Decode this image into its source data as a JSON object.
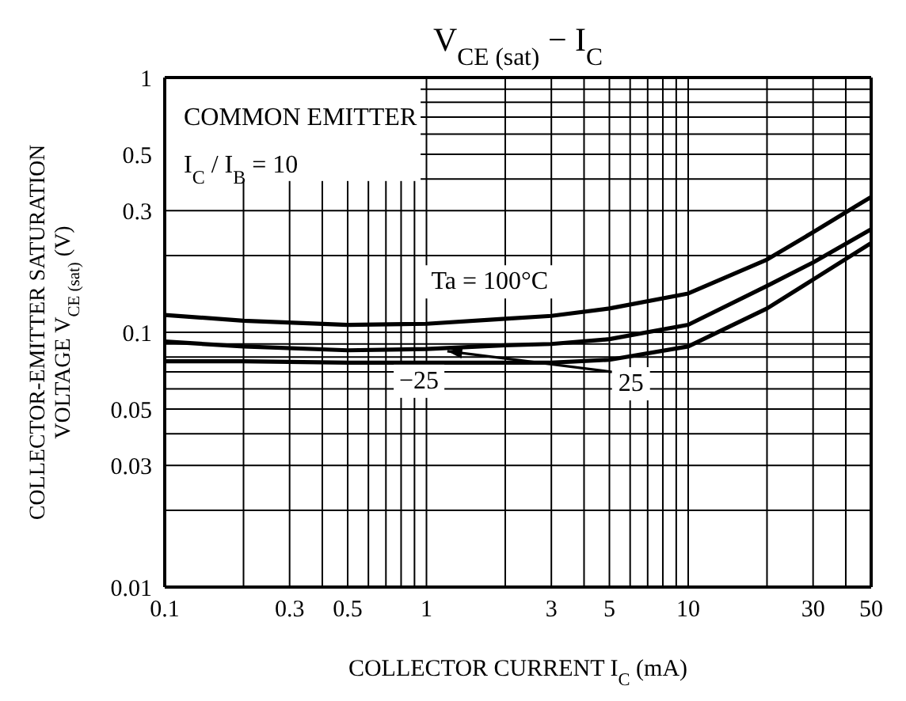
{
  "chart_data": {
    "type": "line",
    "title": "V$_{CE (sat)}$ − I$_{C}$",
    "xlabel": "COLLECTOR CURRENT  I$_{C}$  (mA)",
    "ylabel": "COLLECTOR-EMITTER SATURATION\nVOLTAGE  V$_{CE (sat)}$  (V)",
    "annotations": [
      "COMMON EMITTER",
      "I$_{C}$ / I$_{B}$ = 10"
    ],
    "log": "xy",
    "grid": true,
    "xlim": [
      0.1,
      50
    ],
    "ylim": [
      0.01,
      1
    ],
    "xticks": [
      0.1,
      {
        "value": 0.2,
        "label": null
      },
      0.3,
      {
        "value": 0.4,
        "label": null
      },
      0.5,
      {
        "value": 0.6,
        "label": null
      },
      {
        "value": 0.7,
        "label": null
      },
      {
        "value": 0.8,
        "label": null
      },
      {
        "value": 0.9,
        "label": null
      },
      1,
      {
        "value": 2,
        "label": null
      },
      3,
      {
        "value": 4,
        "label": null
      },
      5,
      {
        "value": 6,
        "label": null
      },
      {
        "value": 7,
        "label": null
      },
      {
        "value": 8,
        "label": null
      },
      {
        "value": 9,
        "label": null
      },
      10,
      {
        "value": 20,
        "label": null
      },
      30,
      {
        "value": 40,
        "label": null
      },
      50
    ],
    "yticks": [
      0.01,
      {
        "value": 0.02,
        "label": null
      },
      0.03,
      {
        "value": 0.04,
        "label": null
      },
      0.05,
      {
        "value": 0.06,
        "label": null
      },
      {
        "value": 0.07,
        "label": null
      },
      {
        "value": 0.08,
        "label": null
      },
      {
        "value": 0.09,
        "label": null
      },
      0.1,
      {
        "value": 0.2,
        "label": null
      },
      0.3,
      {
        "value": 0.4,
        "label": null
      },
      0.5,
      {
        "value": 0.6,
        "label": null
      },
      {
        "value": 0.7,
        "label": null
      },
      {
        "value": 0.8,
        "label": null
      },
      {
        "value": 0.9,
        "label": null
      },
      1
    ],
    "x": [
      0.1,
      0.2,
      0.5,
      1,
      2,
      3,
      5,
      10,
      20,
      30,
      50
    ],
    "series": [
      {
        "name": "Ta = 100°C",
        "color": "#000000",
        "values": [
          0.117,
          0.111,
          0.107,
          0.108,
          0.113,
          0.116,
          0.124,
          0.142,
          0.193,
          0.247,
          0.34
        ]
      },
      {
        "name": "25",
        "color": "#000000",
        "values": [
          0.092,
          0.088,
          0.085,
          0.086,
          0.089,
          0.09,
          0.094,
          0.107,
          0.152,
          0.188,
          0.254
        ]
      },
      {
        "name": "−25",
        "color": "#000000",
        "values": [
          0.077,
          0.077,
          0.076,
          0.076,
          0.076,
          0.076,
          0.078,
          0.088,
          0.124,
          0.161,
          0.224
        ]
      }
    ]
  }
}
